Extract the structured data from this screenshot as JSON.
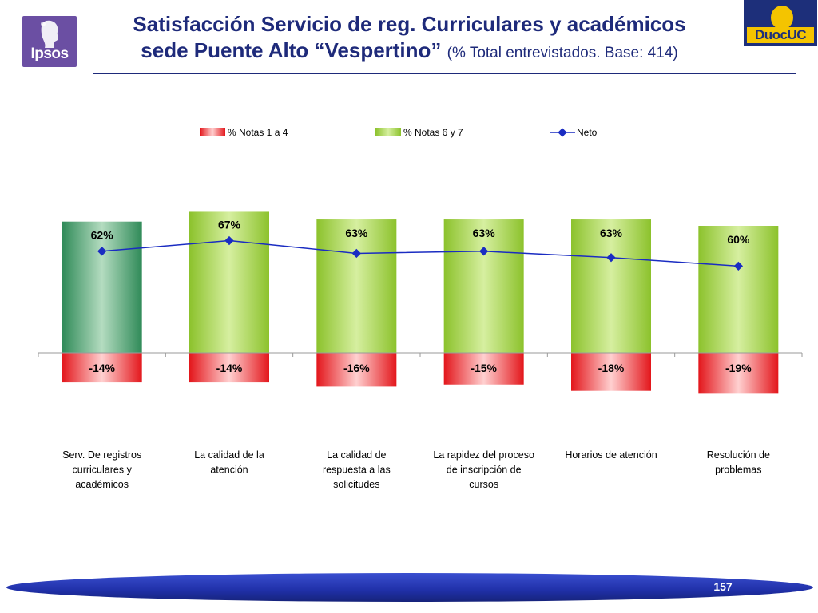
{
  "header": {
    "title_line1": "Satisfacción Servicio de reg. Curriculares y académicos",
    "title_line2_bold": "sede Puente Alto “Vespertino”",
    "title_line2_normal": "(% Total entrevistados. Base:  414)"
  },
  "logos": {
    "ipsos_text": "Ipsos",
    "duoc_text": "DuocUC"
  },
  "colors": {
    "title": "#1e2a7a",
    "positive_bar": "#9acd3a",
    "first_positive_bar": "#3e9a64",
    "negative_bar": "#e8262a",
    "neto_line": "#1a2cc2"
  },
  "chart_data": {
    "type": "bar",
    "categories": [
      "Serv. De registros curriculares y académicos",
      "La calidad de la atención",
      "La calidad de respuesta a las solicitudes",
      "La rapidez del proceso de inscripción de cursos",
      "Horarios de atención",
      "Resolución de problemas"
    ],
    "series": [
      {
        "name": "% Notas 1  a  4",
        "values": [
          -14,
          -14,
          -16,
          -15,
          -18,
          -19
        ],
        "labels": [
          "-14%",
          "-14%",
          "-16%",
          "-15%",
          "-18%",
          "-19%"
        ]
      },
      {
        "name": "% Notas 6  y  7",
        "values": [
          62,
          67,
          63,
          63,
          63,
          60
        ],
        "labels": [
          "62%",
          "67%",
          "63%",
          "63%",
          "63%",
          "60%"
        ]
      },
      {
        "name": "Neto",
        "values": [
          48,
          53,
          47,
          48,
          45,
          41
        ]
      }
    ],
    "legend_position": "top",
    "ylim": [
      -22,
      80
    ],
    "grid": false
  },
  "footer": {
    "page_number": "157"
  }
}
